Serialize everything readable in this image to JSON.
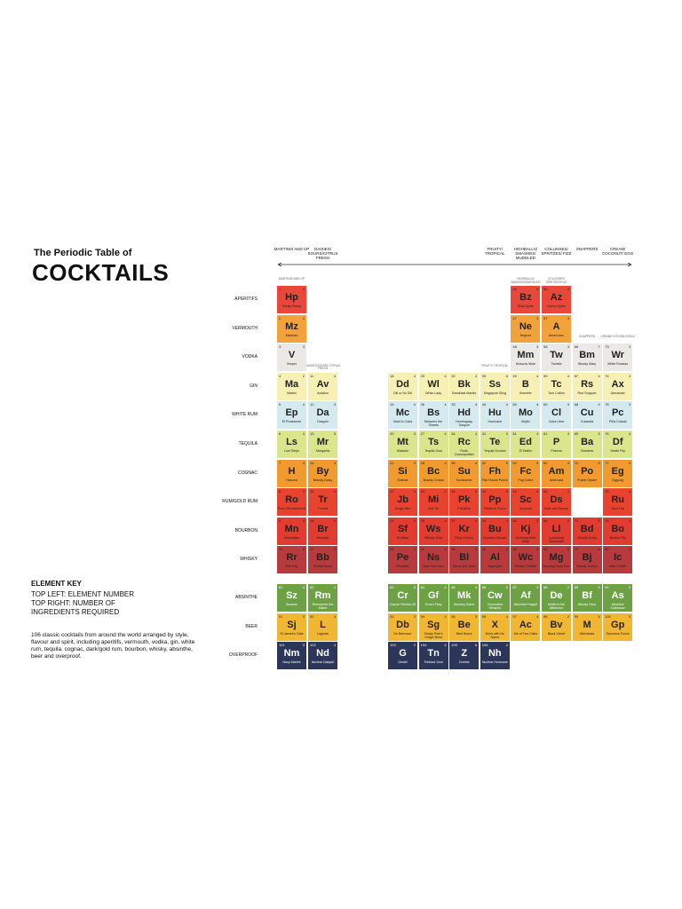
{
  "title_line1": "The Periodic Table of",
  "title_line2": "COCKTAILS",
  "key": {
    "heading": "ELEMENT KEY",
    "lines": [
      "TOP LEFT: ELEMENT NUMBER",
      "TOP RIGHT: NUMBER OF",
      "INGREDIENTS REQUIRED"
    ]
  },
  "description": "106 classic cocktails from around the world arranged by style, flavour and spirit, including aperitifs, vermouth, vodka, gin, white rum, tequila, cognac, dark/gold rum, bourbon, whisky, absinthe, beer and overproof.",
  "column_headers": [
    "MARTINIS AND UP",
    "DAISIES/ SOURS/CITRUS FRESH",
    null,
    null,
    null,
    "FRUITY/ TROPICAL",
    "HIGHBALLS/ SMASHES/ MUDDLED",
    "COLLINSES/ SPRITZES/ FIZZ",
    "SNAPPERS",
    "CREAM/ COCONUT/ EGG"
  ],
  "inner_labels": [
    "MARTINIS AND UP",
    "DAISIES/SOURS/ CITRUS FRESH",
    null,
    null,
    null,
    "FRUITY/ TROPICAL",
    "HIGHBALLS/ SMASHES/MUDDLED",
    "COLLINSES/ SPRITZES/FIZZ",
    "SNAPPERS",
    "CREAM/ COCONUT/EGG"
  ],
  "rows": [
    {
      "label": "APERITIFS",
      "cells": [
        {
          "number": 1,
          "ingredients": 3,
          "symbol": "Hp",
          "name": "Hanky Panky"
        },
        null,
        null,
        null,
        null,
        null,
        {
          "number": 46,
          "ingredients": 4,
          "symbol": "Bz",
          "name": "Brits Spritz"
        },
        {
          "number": 56,
          "ingredients": 3,
          "symbol": "Az",
          "name": "Aperol Spritz"
        },
        null,
        null
      ]
    },
    {
      "label": "VERMOUTH",
      "cells": [
        {
          "number": 2,
          "ingredients": 4,
          "symbol": "Mz",
          "name": "Martinez"
        },
        null,
        null,
        null,
        null,
        null,
        {
          "number": 47,
          "ingredients": 3,
          "symbol": "Ne",
          "name": "Negroni"
        },
        {
          "number": 57,
          "ingredients": 3,
          "symbol": "A",
          "name": "Americano"
        },
        null,
        null
      ]
    },
    {
      "label": "VODKA",
      "cells": [
        {
          "number": 3,
          "ingredients": 3,
          "symbol": "V",
          "name": "Vesper"
        },
        null,
        null,
        null,
        null,
        null,
        {
          "number": 48,
          "ingredients": 3,
          "symbol": "Mm",
          "name": "Moscow Mule"
        },
        {
          "number": 58,
          "ingredients": 3,
          "symbol": "Tw",
          "name": "Twinkle"
        },
        {
          "number": 66,
          "ingredients": 7,
          "symbol": "Bm",
          "name": "Bloody Mary"
        },
        {
          "number": 73,
          "ingredients": 3,
          "symbol": "Wr",
          "name": "White Russian"
        }
      ]
    },
    {
      "label": "GIN",
      "cells": [
        {
          "number": 4,
          "ingredients": 2,
          "symbol": "Ma",
          "name": "Martini"
        },
        {
          "number": 11,
          "ingredients": 4,
          "symbol": "Av",
          "name": "Aviation"
        },
        {
          "number": 18,
          "ingredients": 4,
          "symbol": "Dd",
          "name": "Dill or No Dill"
        },
        {
          "number": 25,
          "ingredients": 4,
          "symbol": "Wl",
          "name": "White Lady"
        },
        {
          "number": 32,
          "ingredients": 4,
          "symbol": "Bk",
          "name": "Breakfast Martini"
        },
        {
          "number": 39,
          "ingredients": 8,
          "symbol": "Ss",
          "name": "Singapore Sling"
        },
        {
          "number": 49,
          "ingredients": 4,
          "symbol": "B",
          "name": "Bramble"
        },
        {
          "number": 59,
          "ingredients": 4,
          "symbol": "Tc",
          "name": "Tom Collins"
        },
        {
          "number": 67,
          "ingredients": 4,
          "symbol": "Rs",
          "name": "Red Snapper"
        },
        {
          "number": 74,
          "ingredients": 3,
          "symbol": "Ax",
          "name": "Alexander"
        }
      ]
    },
    {
      "label": "WHITE RUM",
      "cells": [
        {
          "number": 5,
          "ingredients": 4,
          "symbol": "Ep",
          "name": "El Presidente"
        },
        {
          "number": 12,
          "ingredients": 3,
          "symbol": "Da",
          "name": "Daiquiri"
        },
        {
          "number": 19,
          "ingredients": 4,
          "symbol": "Mc",
          "name": "Maid in Cuba"
        },
        {
          "number": 26,
          "ingredients": 4,
          "symbol": "Bs",
          "name": "Between the Sheets"
        },
        {
          "number": 33,
          "ingredients": 4,
          "symbol": "Hd",
          "name": "Hemingway Daiquiri"
        },
        {
          "number": 40,
          "ingredients": 4,
          "symbol": "Hu",
          "name": "Hurricane"
        },
        {
          "number": 50,
          "ingredients": 4,
          "symbol": "Mo",
          "name": "Mojito"
        },
        {
          "number": 60,
          "ingredients": 3,
          "symbol": "Cl",
          "name": "Cuba Libre"
        },
        {
          "number": 68,
          "ingredients": 4,
          "symbol": "Cu",
          "name": "Cubanita"
        },
        {
          "number": 75,
          "ingredients": 3,
          "symbol": "Pc",
          "name": "Piña Colada"
        }
      ]
    },
    {
      "label": "TEQUILA",
      "cells": [
        {
          "number": 6,
          "ingredients": 4,
          "symbol": "Ls",
          "name": "Lost Steps"
        },
        {
          "number": 13,
          "ingredients": 3,
          "symbol": "Mr",
          "name": "Margarita"
        },
        {
          "number": 20,
          "ingredients": 3,
          "symbol": "Mt",
          "name": "Matador"
        },
        {
          "number": 27,
          "ingredients": 4,
          "symbol": "Ts",
          "name": "Tequila Sour"
        },
        {
          "number": 34,
          "ingredients": 4,
          "symbol": "Rc",
          "name": "Rude Cosmopolitan"
        },
        {
          "number": 41,
          "ingredients": 3,
          "symbol": "Te",
          "name": "Tequila Sunrise"
        },
        {
          "number": 51,
          "ingredients": 4,
          "symbol": "Ed",
          "name": "El Diablo"
        },
        {
          "number": 61,
          "ingredients": 4,
          "symbol": "P",
          "name": "Paloma"
        },
        {
          "number": 69,
          "ingredients": 3,
          "symbol": "Ba",
          "name": "Bandera"
        },
        {
          "number": 76,
          "ingredients": 4,
          "symbol": "Df",
          "name": "Death Flip"
        }
      ]
    },
    {
      "label": "COGNAC",
      "cells": [
        {
          "number": 7,
          "ingredients": 4,
          "symbol": "H",
          "name": "Harvard"
        },
        {
          "number": 14,
          "ingredients": 4,
          "symbol": "By",
          "name": "Brandy Daisy"
        },
        {
          "number": 21,
          "ingredients": 3,
          "symbol": "Si",
          "name": "Sidecar"
        },
        {
          "number": 28,
          "ingredients": 4,
          "symbol": "Bc",
          "name": "Brandy Crusta"
        },
        {
          "number": 35,
          "ingredients": 4,
          "symbol": "Su",
          "name": "Sundowner"
        },
        {
          "number": 42,
          "ingredients": 5,
          "symbol": "Fh",
          "name": "Fish House Punch"
        },
        {
          "number": 52,
          "ingredients": 5,
          "symbol": "Fc",
          "name": "Fog Cutter"
        },
        {
          "number": 62,
          "ingredients": 4,
          "symbol": "Am",
          "name": "Ambrosia"
        },
        {
          "number": 70,
          "ingredients": 5,
          "symbol": "Po",
          "name": "Prairie Oyster"
        },
        {
          "number": 77,
          "ingredients": 5,
          "symbol": "Eg",
          "name": "Eggnog"
        }
      ]
    },
    {
      "label": "RUM/GOLD RUM",
      "cells": [
        {
          "number": 8,
          "ingredients": 3,
          "symbol": "Ro",
          "name": "Rum Old-fashioned"
        },
        {
          "number": 15,
          "ingredients": 4,
          "symbol": "Tr",
          "name": "Treacle"
        },
        {
          "number": 22,
          "ingredients": 5,
          "symbol": "Jb",
          "name": "Jungle Bird"
        },
        {
          "number": 29,
          "ingredients": 5,
          "symbol": "Mi",
          "name": "Mai Tai"
        },
        {
          "number": 36,
          "ingredients": 4,
          "symbol": "Pk",
          "name": "Painkiller"
        },
        {
          "number": 43,
          "ingredients": 5,
          "symbol": "Pp",
          "name": "Planter's Punch"
        },
        {
          "number": 53,
          "ingredients": 5,
          "symbol": "Sc",
          "name": "Scorpion"
        },
        {
          "number": 63,
          "ingredients": 3,
          "symbol": "Ds",
          "name": "Dark and Stormy"
        },
        null,
        {
          "number": 78,
          "ingredients": 4,
          "symbol": "Ru",
          "name": "Rum Flip"
        }
      ]
    },
    {
      "label": "BOURBON",
      "cells": [
        {
          "number": 9,
          "ingredients": 3,
          "symbol": "Mn",
          "name": "Manhattan"
        },
        {
          "number": 16,
          "ingredients": 4,
          "symbol": "Br",
          "name": "Brooklyn"
        },
        {
          "number": 23,
          "ingredients": 5,
          "symbol": "Sf",
          "name": "Scofflaw"
        },
        {
          "number": 30,
          "ingredients": 4,
          "symbol": "Ws",
          "name": "Whisky Sour"
        },
        {
          "number": 37,
          "ingredients": 4,
          "symbol": "Kr",
          "name": "Ring of Kerry"
        },
        {
          "number": 44,
          "ingredients": 4,
          "symbol": "Bu",
          "name": "Bourbon Smash"
        },
        {
          "number": 54,
          "ingredients": 3,
          "symbol": "Kj",
          "name": "Kentucky Mint Julep"
        },
        {
          "number": 64,
          "ingredients": 4,
          "symbol": "Ll",
          "name": "Lynchburg Lemonade"
        },
        {
          "number": 71,
          "ingredients": 5,
          "symbol": "Bd",
          "name": "Bloody Derby"
        },
        {
          "number": 79,
          "ingredients": 4,
          "symbol": "Bo",
          "name": "Boston Flip"
        }
      ]
    },
    {
      "label": "WHISKY",
      "cells": [
        {
          "number": 10,
          "ingredients": 3,
          "symbol": "Rr",
          "name": "Rob Roy"
        },
        {
          "number": 17,
          "ingredients": 3,
          "symbol": "Bb",
          "name": "Bobby Burns"
        },
        {
          "number": 24,
          "ingredients": 4,
          "symbol": "Pe",
          "name": "Penicillin"
        },
        {
          "number": 31,
          "ingredients": 5,
          "symbol": "Ns",
          "name": "New York Sour"
        },
        {
          "number": 38,
          "ingredients": 4,
          "symbol": "Bl",
          "name": "Blood and Sand"
        },
        {
          "number": 45,
          "ingredients": 3,
          "symbol": "Al",
          "name": "Algonquin"
        },
        {
          "number": 55,
          "ingredients": 4,
          "symbol": "Wc",
          "name": "Whisky Cobbler"
        },
        {
          "number": 65,
          "ingredients": 5,
          "symbol": "Mg",
          "name": "Morning Glory Fizz"
        },
        {
          "number": 72,
          "ingredients": 6,
          "symbol": "Bj",
          "name": "Bloody Joseph"
        },
        {
          "number": 80,
          "ingredients": 4,
          "symbol": "Ic",
          "name": "Irish Coffee"
        }
      ]
    },
    {
      "label": "ABSINTHE",
      "cells": [
        {
          "number": 81,
          "ingredients": 4,
          "symbol": "Sz",
          "name": "Sazerac"
        },
        {
          "number": 82,
          "ingredients": 4,
          "symbol": "Rm",
          "name": "Remember the Maine"
        },
        {
          "number": 83,
          "ingredients": 5,
          "symbol": "Cr",
          "name": "Corpse Reviver #2"
        },
        {
          "number": 84,
          "ingredients": 4,
          "symbol": "Gf",
          "name": "Green Fairy"
        },
        {
          "number": 85,
          "ingredients": 4,
          "symbol": "Mk",
          "name": "Monkey Gland"
        },
        {
          "number": 86,
          "ingredients": 5,
          "symbol": "Cw",
          "name": "Concealed Weapon"
        },
        {
          "number": 87,
          "ingredients": 3,
          "symbol": "Af",
          "name": "Absinthe Frappé"
        },
        {
          "number": 88,
          "ingredients": 2,
          "symbol": "De",
          "name": "Death in the Afternoon"
        },
        {
          "number": 89,
          "ingredients": 5,
          "symbol": "Bf",
          "name": "Bloody Fairy"
        },
        {
          "number": 90,
          "ingredients": 5,
          "symbol": "As",
          "name": "Absinthe Suissesse"
        }
      ]
    },
    {
      "label": "BEER",
      "cells": [
        {
          "number": 91,
          "ingredients": 3,
          "symbol": "Sj",
          "name": "St James's Gate"
        },
        {
          "number": 92,
          "ingredients": 4,
          "symbol": "L",
          "name": "Lagerita"
        },
        {
          "number": 93,
          "ingredients": 3,
          "symbol": "Db",
          "name": "De Beeracer"
        },
        {
          "number": 94,
          "ingredients": 4,
          "symbol": "Sg",
          "name": "Shady Pete's Ginger Brew"
        },
        {
          "number": 95,
          "ingredients": 3,
          "symbol": "Be",
          "name": "Beet Beere"
        },
        {
          "number": 96,
          "ingredients": 4,
          "symbol": "X",
          "name": "Drink with No Name"
        },
        {
          "number": 97,
          "ingredients": 4,
          "symbol": "Ac",
          "name": "Ale of Two Cities"
        },
        {
          "number": 98,
          "ingredients": 2,
          "symbol": "Bv",
          "name": "Black Velvet"
        },
        {
          "number": 99,
          "ingredients": 5,
          "symbol": "M",
          "name": "Michelada"
        },
        {
          "number": 100,
          "ingredients": 5,
          "symbol": "Gp",
          "name": "Guinness Punch"
        }
      ]
    },
    {
      "label": "OVERPROOF",
      "cells": [
        {
          "number": 101,
          "ingredients": 3,
          "symbol": "Nm",
          "name": "Navy Martini"
        },
        {
          "number": 102,
          "ingredients": 4,
          "symbol": "Nd",
          "name": "Nuclear Daiquiri"
        },
        {
          "number": 103,
          "ingredients": 2,
          "symbol": "G",
          "name": "Gimlet"
        },
        {
          "number": 104,
          "ingredients": 4,
          "symbol": "Tn",
          "name": "Trinidad Sour"
        },
        {
          "number": 105,
          "ingredients": 6,
          "symbol": "Z",
          "name": "Zombie"
        },
        {
          "number": 106,
          "ingredients": 4,
          "symbol": "Nh",
          "name": "Nuclear Hurricane"
        },
        null,
        null,
        null,
        null
      ]
    }
  ]
}
